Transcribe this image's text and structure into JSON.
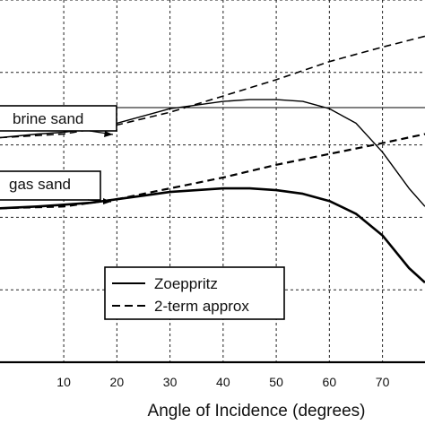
{
  "chart_data": {
    "type": "line",
    "xlabel": "Angle of Incidence (degrees)",
    "ylabel": "",
    "xlim": [
      -2,
      78
    ],
    "ylim": [
      0,
      1
    ],
    "x_ticks": [
      10,
      20,
      30,
      40,
      50,
      60,
      70
    ],
    "grid": true,
    "annotations": [
      "brine sand",
      "gas sand"
    ],
    "legend": {
      "position": "bottom-center",
      "entries": [
        {
          "label": "Zoeppritz",
          "style": "solid"
        },
        {
          "label": "2-term approx",
          "style": "dashed"
        }
      ]
    },
    "series": [
      {
        "group": "brine sand",
        "name": "Zoeppritz",
        "style": "solid",
        "x": [
          -2,
          5,
          10,
          15,
          20,
          25,
          30,
          35,
          40,
          45,
          50,
          55,
          60,
          65,
          70,
          75,
          78
        ],
        "y": [
          0.62,
          0.63,
          0.635,
          0.645,
          0.66,
          0.68,
          0.7,
          0.71,
          0.72,
          0.725,
          0.725,
          0.72,
          0.7,
          0.66,
          0.58,
          0.48,
          0.43
        ]
      },
      {
        "group": "brine sand",
        "name": "2-term approx",
        "style": "dashed",
        "x": [
          -2,
          10,
          20,
          30,
          40,
          50,
          60,
          70,
          78
        ],
        "y": [
          0.62,
          0.63,
          0.655,
          0.69,
          0.735,
          0.78,
          0.83,
          0.87,
          0.9
        ]
      },
      {
        "group": "gas sand",
        "name": "Zoeppritz",
        "style": "solid",
        "x": [
          -2,
          5,
          10,
          15,
          20,
          25,
          30,
          35,
          40,
          45,
          50,
          55,
          60,
          65,
          70,
          75,
          78
        ],
        "y": [
          0.425,
          0.43,
          0.435,
          0.44,
          0.45,
          0.46,
          0.47,
          0.475,
          0.48,
          0.48,
          0.475,
          0.465,
          0.445,
          0.41,
          0.35,
          0.26,
          0.22
        ]
      },
      {
        "group": "gas sand",
        "name": "2-term approx",
        "style": "dashed",
        "x": [
          -2,
          10,
          20,
          30,
          40,
          50,
          60,
          70,
          78
        ],
        "y": [
          0.425,
          0.43,
          0.45,
          0.48,
          0.51,
          0.545,
          0.575,
          0.605,
          0.63
        ]
      }
    ]
  }
}
